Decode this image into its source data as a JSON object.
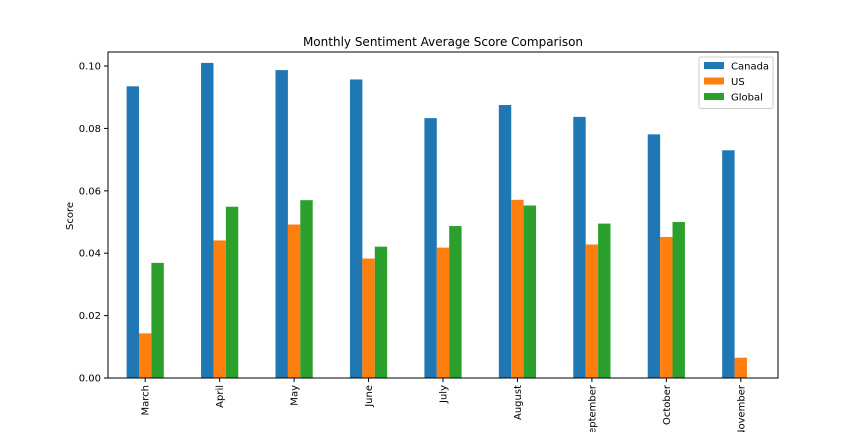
{
  "chart_data": {
    "type": "bar",
    "title": "Monthly Sentiment Average Score Comparison",
    "xlabel": "",
    "ylabel": "Score",
    "categories": [
      "March",
      "April",
      "May",
      "June",
      "July",
      "August",
      "September",
      "October",
      "November"
    ],
    "series": [
      {
        "name": "Canada",
        "color": "#1f77b4",
        "values": [
          0.0935,
          0.101,
          0.0987,
          0.0957,
          0.0833,
          0.0875,
          0.0837,
          0.0781,
          0.073
        ]
      },
      {
        "name": "US",
        "color": "#ff7f0e",
        "values": [
          0.0143,
          0.0441,
          0.0492,
          0.0383,
          0.0418,
          0.0571,
          0.0428,
          0.0452,
          0.0065
        ]
      },
      {
        "name": "Global",
        "color": "#2ca02c",
        "values": [
          0.0369,
          0.0549,
          0.057,
          0.0421,
          0.0487,
          0.0553,
          0.0495,
          0.05,
          null
        ]
      }
    ],
    "ylim": [
      0,
      0.1045
    ],
    "yticks": [
      "0.00",
      "0.02",
      "0.04",
      "0.06",
      "0.08",
      "0.10"
    ],
    "grid": false,
    "legend_position": "top-right"
  }
}
